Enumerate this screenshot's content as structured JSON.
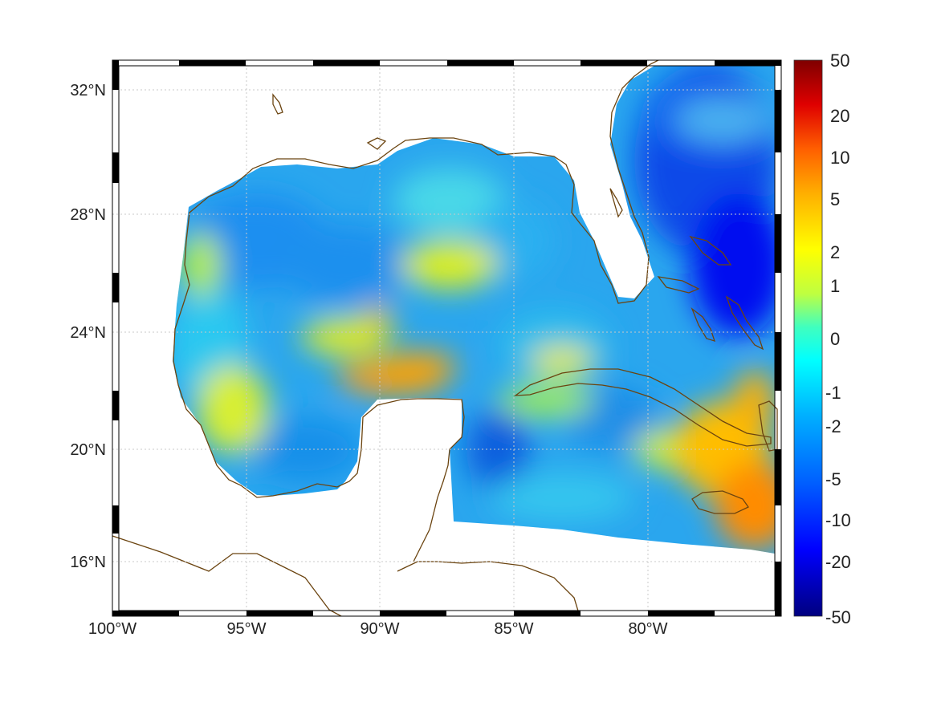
{
  "map": {
    "lon_labels": [
      "100°W",
      "95°W",
      "90°W",
      "85°W",
      "80°W"
    ],
    "lat_labels": [
      "32°N",
      "28°N",
      "24°N",
      "20°N",
      "16°N"
    ],
    "extent": {
      "lon": [
        -100,
        -75
      ],
      "lat": [
        14.3,
        33
      ]
    },
    "land_color": "#ffffff",
    "coastline_color": "#6b4410",
    "gridlines": true,
    "frame": "black-white-striped"
  },
  "colorbar": {
    "tick_labels": [
      "50",
      "20",
      "10",
      "5",
      "2",
      "1",
      "0",
      "-1",
      "-2",
      "-5",
      "-10",
      "-20",
      "-50"
    ],
    "colormap": "jet",
    "placement": "right"
  }
}
